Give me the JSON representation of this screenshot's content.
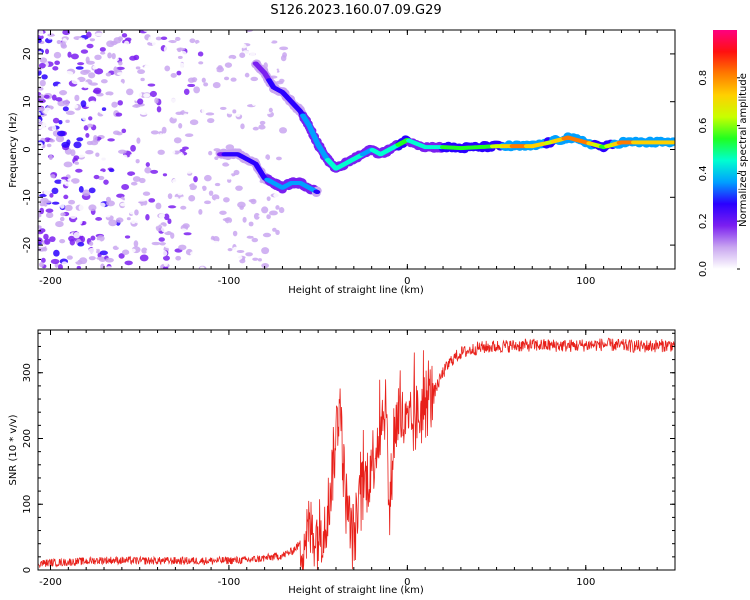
{
  "title": "S126.2023.160.07.09.G29",
  "chart_data": [
    {
      "type": "heatmap",
      "xlabel": "Height of straight line (km)",
      "ylabel": "Frequency (Hz)",
      "xlim": [
        -207,
        150
      ],
      "ylim": [
        -25,
        25
      ],
      "xticks": [
        -200,
        -100,
        0,
        100
      ],
      "yticks": [
        -20,
        -10,
        0,
        10,
        20
      ],
      "colorbar": {
        "label": "Normalized spectral amplitude",
        "range": [
          0.0,
          1.0
        ],
        "ticks": [
          0.0,
          0.2,
          0.4,
          0.6,
          0.8
        ],
        "colors": [
          "#ffffff",
          "#c9a6f0",
          "#7b1ff0",
          "#2a00ff",
          "#00a0ff",
          "#00ffd0",
          "#20ff20",
          "#c8ff00",
          "#ffd000",
          "#ff7a00",
          "#ff1010",
          "#ff0080"
        ]
      },
      "ridge": {
        "x": [
          -85,
          -80,
          -75,
          -70,
          -65,
          -60,
          -55,
          -50,
          -45,
          -40,
          -35,
          -30,
          -25,
          -20,
          -15,
          -10,
          -5,
          0,
          10,
          20,
          30,
          40,
          50,
          60,
          70,
          80,
          90,
          100,
          110,
          120,
          130,
          140,
          150
        ],
        "y": [
          18,
          16,
          13,
          12,
          10,
          8,
          5,
          1,
          -2,
          -4,
          -3,
          -2,
          -1,
          0,
          -1,
          0,
          1,
          2,
          0.5,
          0.5,
          0.3,
          0.5,
          0.7,
          0.7,
          0.7,
          1.5,
          2.5,
          1.5,
          0.5,
          1.5,
          1.5,
          1.5,
          1.5
        ],
        "amplitude": [
          0.2,
          0.25,
          0.3,
          0.35,
          0.35,
          0.35,
          0.4,
          0.4,
          0.45,
          0.5,
          0.5,
          0.5,
          0.45,
          0.45,
          0.5,
          0.5,
          0.55,
          0.55,
          0.5,
          0.55,
          0.55,
          0.6,
          0.65,
          0.85,
          0.8,
          0.7,
          0.85,
          0.85,
          0.6,
          0.85,
          0.8,
          0.8,
          0.75
        ]
      },
      "lower_branch": {
        "x": [
          -105,
          -100,
          -95,
          -90,
          -85,
          -80,
          -75,
          -70,
          -65,
          -60,
          -55,
          -50
        ],
        "y": [
          -1,
          -1,
          -1,
          -2,
          -3,
          -6,
          -7,
          -8,
          -7,
          -7,
          -8,
          -9
        ],
        "amplitude": [
          0.25,
          0.3,
          0.3,
          0.3,
          0.3,
          0.35,
          0.4,
          0.4,
          0.4,
          0.4,
          0.4,
          0.35
        ]
      }
    },
    {
      "type": "line",
      "xlabel": "Height of straight line (km)",
      "ylabel": "SNR (10 * v/v)",
      "xlim": [
        -207,
        150
      ],
      "ylim": [
        0,
        365
      ],
      "xticks": [
        -200,
        -100,
        0,
        100
      ],
      "yticks": [
        0,
        100,
        200,
        300
      ],
      "color": "#e8201a",
      "x": [
        -207,
        -190,
        -170,
        -150,
        -130,
        -110,
        -90,
        -80,
        -70,
        -65,
        -60,
        -55,
        -50,
        -45,
        -42,
        -38,
        -35,
        -32,
        -30,
        -25,
        -20,
        -15,
        -12,
        -10,
        -8,
        -5,
        0,
        5,
        10,
        15,
        20,
        25,
        30,
        40,
        50,
        70,
        90,
        110,
        130,
        150
      ],
      "y": [
        10,
        12,
        15,
        14,
        14,
        14,
        15,
        18,
        22,
        28,
        40,
        60,
        55,
        80,
        150,
        260,
        120,
        60,
        50,
        120,
        160,
        220,
        260,
        70,
        200,
        240,
        210,
        230,
        250,
        270,
        300,
        320,
        330,
        338,
        340,
        342,
        341,
        343,
        340,
        342
      ]
    }
  ]
}
